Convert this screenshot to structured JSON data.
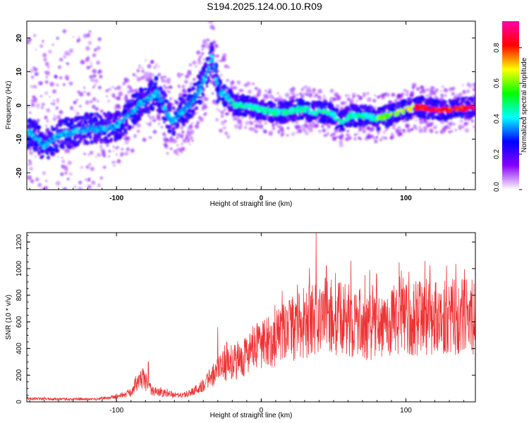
{
  "figure": {
    "title": "S194.2025.124.00.10.R09"
  },
  "chart_data": [
    {
      "type": "heatmap",
      "xlabel": "Height of straight line (km)",
      "ylabel": "Frequency (Hz)",
      "xlim": [
        -162,
        148
      ],
      "ylim": [
        -25,
        25
      ],
      "xticks": [
        -100,
        0,
        100
      ],
      "yticks": [
        -20,
        -10,
        0,
        10,
        20
      ],
      "colorbar": {
        "label": "Normalized spectral amplitude",
        "range": [
          0,
          0.95
        ],
        "ticks": [
          "0.0",
          "0.2",
          "0.4",
          "0.6",
          "0.8"
        ],
        "colors": [
          "#ffffff",
          "#8800ff",
          "#0000ff",
          "#00ffff",
          "#00ff00",
          "#ffff00",
          "#ff0000",
          "#ff00aa"
        ]
      },
      "ridge": [
        {
          "x": -160,
          "y": -8
        },
        {
          "x": -150,
          "y": -12
        },
        {
          "x": -140,
          "y": -9
        },
        {
          "x": -130,
          "y": -8
        },
        {
          "x": -120,
          "y": -7
        },
        {
          "x": -110,
          "y": -7
        },
        {
          "x": -100,
          "y": -6
        },
        {
          "x": -92,
          "y": -3
        },
        {
          "x": -85,
          "y": 0
        },
        {
          "x": -78,
          "y": 2
        },
        {
          "x": -72,
          "y": 4
        },
        {
          "x": -62,
          "y": -5
        },
        {
          "x": -55,
          "y": -2
        },
        {
          "x": -48,
          "y": 1
        },
        {
          "x": -42,
          "y": 5
        },
        {
          "x": -38,
          "y": 9
        },
        {
          "x": -34,
          "y": 15
        },
        {
          "x": -30,
          "y": 5
        },
        {
          "x": -25,
          "y": 3
        },
        {
          "x": -18,
          "y": 0
        },
        {
          "x": -10,
          "y": 0
        },
        {
          "x": -2,
          "y": -1
        },
        {
          "x": 8,
          "y": -2
        },
        {
          "x": 18,
          "y": -2
        },
        {
          "x": 28,
          "y": -1
        },
        {
          "x": 38,
          "y": -2
        },
        {
          "x": 48,
          "y": -2
        },
        {
          "x": 55,
          "y": -5
        },
        {
          "x": 62,
          "y": -3
        },
        {
          "x": 72,
          "y": -3
        },
        {
          "x": 80,
          "y": -4
        },
        {
          "x": 88,
          "y": -3
        },
        {
          "x": 95,
          "y": -2
        },
        {
          "x": 102,
          "y": -1
        },
        {
          "x": 110,
          "y": -0.5
        },
        {
          "x": 118,
          "y": -1
        },
        {
          "x": 126,
          "y": -1.5
        },
        {
          "x": 134,
          "y": -1
        },
        {
          "x": 146,
          "y": -0.5
        }
      ]
    },
    {
      "type": "line",
      "xlabel": "Height of straight line (km)",
      "ylabel": "SNR (10 * v/v)",
      "xlim": [
        -162,
        148
      ],
      "ylim": [
        0,
        1270
      ],
      "xticks": [
        -100,
        0,
        100
      ],
      "yticks": [
        0,
        200,
        400,
        600,
        800,
        1000,
        1200
      ],
      "color": "#ee3333",
      "envelope": [
        {
          "x": -162,
          "y": 25
        },
        {
          "x": -140,
          "y": 20
        },
        {
          "x": -115,
          "y": 20
        },
        {
          "x": -100,
          "y": 40
        },
        {
          "x": -90,
          "y": 70
        },
        {
          "x": -82,
          "y": 180
        },
        {
          "x": -75,
          "y": 80
        },
        {
          "x": -65,
          "y": 60
        },
        {
          "x": -55,
          "y": 45
        },
        {
          "x": -45,
          "y": 90
        },
        {
          "x": -35,
          "y": 180
        },
        {
          "x": -25,
          "y": 280
        },
        {
          "x": -15,
          "y": 320
        },
        {
          "x": -5,
          "y": 400
        },
        {
          "x": 5,
          "y": 440
        },
        {
          "x": 15,
          "y": 520
        },
        {
          "x": 25,
          "y": 560
        },
        {
          "x": 35,
          "y": 620
        },
        {
          "x": 45,
          "y": 640
        },
        {
          "x": 55,
          "y": 620
        },
        {
          "x": 65,
          "y": 600
        },
        {
          "x": 75,
          "y": 560
        },
        {
          "x": 85,
          "y": 580
        },
        {
          "x": 95,
          "y": 620
        },
        {
          "x": 105,
          "y": 630
        },
        {
          "x": 115,
          "y": 630
        },
        {
          "x": 125,
          "y": 640
        },
        {
          "x": 135,
          "y": 640
        },
        {
          "x": 148,
          "y": 640
        }
      ],
      "peaks": [
        {
          "x": -78,
          "y": 300
        },
        {
          "x": -30,
          "y": 560
        },
        {
          "x": 25,
          "y": 880
        },
        {
          "x": 38,
          "y": 1270
        },
        {
          "x": 45,
          "y": 1020
        },
        {
          "x": 62,
          "y": 1060
        },
        {
          "x": 75,
          "y": 990
        },
        {
          "x": 100,
          "y": 880
        },
        {
          "x": 148,
          "y": 740
        }
      ]
    }
  ]
}
